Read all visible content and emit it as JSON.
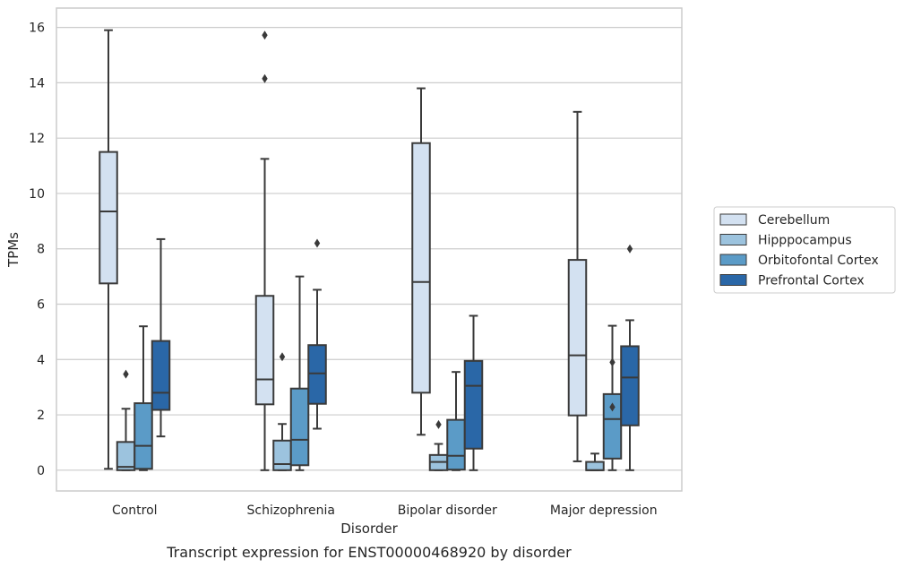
{
  "chart_data": {
    "type": "box",
    "caption": "Transcript expression for ENST00000468920 by disorder",
    "xlabel": "Disorder",
    "ylabel": "TPMs",
    "ylim": [
      -0.75,
      16.7
    ],
    "yticks": [
      0,
      2,
      4,
      6,
      8,
      10,
      12,
      14,
      16
    ],
    "grid": "horizontal",
    "legend_position": "right",
    "categories": [
      "Control",
      "Schizophrenia",
      "Bipolar disorder",
      "Major depression"
    ],
    "series": [
      {
        "name": "Cerebellum",
        "color": "#d3e1f1",
        "boxes": [
          {
            "whislo": 0.05,
            "q1": 6.75,
            "med": 9.35,
            "q3": 11.5,
            "whishi": 15.9,
            "fliers": []
          },
          {
            "whislo": 0.0,
            "q1": 2.38,
            "med": 3.28,
            "q3": 6.3,
            "whishi": 11.25,
            "fliers": [
              14.15,
              15.72
            ]
          },
          {
            "whislo": 1.28,
            "q1": 2.8,
            "med": 6.8,
            "q3": 11.82,
            "whishi": 13.8,
            "fliers": []
          },
          {
            "whislo": 0.32,
            "q1": 1.98,
            "med": 4.15,
            "q3": 7.6,
            "whishi": 12.95,
            "fliers": []
          }
        ]
      },
      {
        "name": "Hipppocampus",
        "color": "#9cc3de",
        "boxes": [
          {
            "whislo": 0.0,
            "q1": 0.0,
            "med": 0.12,
            "q3": 1.02,
            "whishi": 2.22,
            "fliers": [
              3.47
            ]
          },
          {
            "whislo": 0.0,
            "q1": 0.0,
            "med": 0.22,
            "q3": 1.07,
            "whishi": 1.67,
            "fliers": [
              4.1
            ]
          },
          {
            "whislo": 0.0,
            "q1": 0.0,
            "med": 0.3,
            "q3": 0.55,
            "whishi": 0.95,
            "fliers": [
              1.65
            ]
          },
          {
            "whislo": 0.0,
            "q1": 0.0,
            "med": 0.0,
            "q3": 0.3,
            "whishi": 0.6,
            "fliers": []
          }
        ]
      },
      {
        "name": "Orbitofontal Cortex",
        "color": "#5b9bc7",
        "boxes": [
          {
            "whislo": 0.0,
            "q1": 0.05,
            "med": 0.88,
            "q3": 2.42,
            "whishi": 5.2,
            "fliers": []
          },
          {
            "whislo": 0.0,
            "q1": 0.18,
            "med": 1.1,
            "q3": 2.95,
            "whishi": 7.0,
            "fliers": []
          },
          {
            "whislo": 0.0,
            "q1": 0.02,
            "med": 0.52,
            "q3": 1.82,
            "whishi": 3.55,
            "fliers": []
          },
          {
            "whislo": 0.0,
            "q1": 0.42,
            "med": 1.85,
            "q3": 2.75,
            "whishi": 5.22,
            "fliers": [
              2.28,
              3.9
            ]
          }
        ]
      },
      {
        "name": "Prefrontal Cortex",
        "color": "#2a67a7",
        "boxes": [
          {
            "whislo": 1.22,
            "q1": 2.18,
            "med": 2.8,
            "q3": 4.67,
            "whishi": 8.35,
            "fliers": []
          },
          {
            "whislo": 1.5,
            "q1": 2.4,
            "med": 3.5,
            "q3": 4.52,
            "whishi": 6.52,
            "fliers": [
              8.2
            ]
          },
          {
            "whislo": 0.0,
            "q1": 0.78,
            "med": 3.05,
            "q3": 3.95,
            "whishi": 5.58,
            "fliers": []
          },
          {
            "whislo": 0.0,
            "q1": 1.62,
            "med": 3.35,
            "q3": 4.48,
            "whishi": 5.42,
            "fliers": [
              8.0
            ]
          }
        ]
      }
    ]
  }
}
